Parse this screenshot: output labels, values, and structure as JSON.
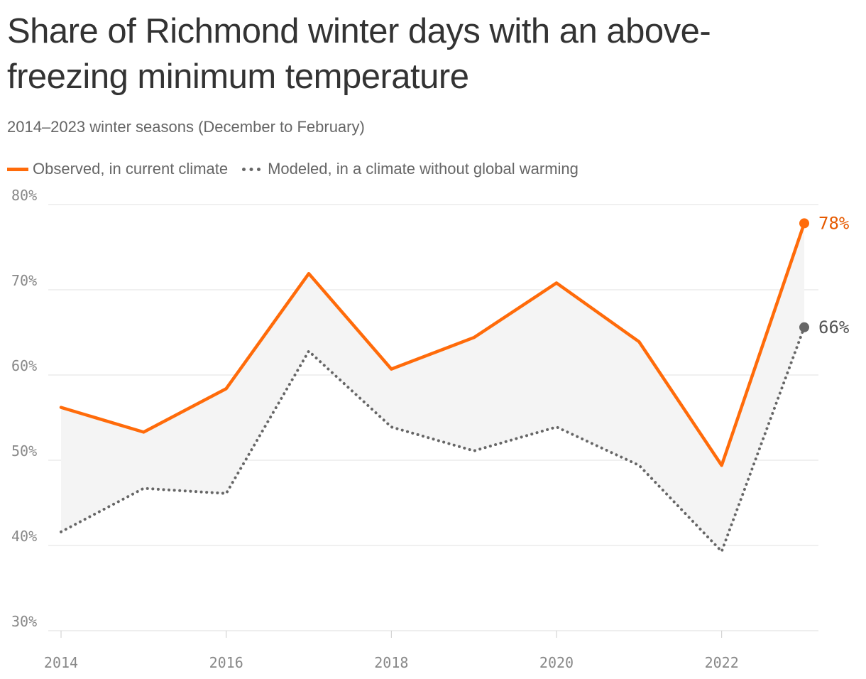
{
  "chart_data": {
    "type": "line",
    "title": "Share of Richmond winter days with an above-freezing minimum temperature",
    "subtitle": "2014–2023 winter seasons (December to February)",
    "x": [
      2014,
      2015,
      2016,
      2017,
      2018,
      2019,
      2020,
      2021,
      2022,
      2023
    ],
    "x_ticks": [
      2014,
      2016,
      2018,
      2020,
      2022
    ],
    "x_tick_labels": [
      "2014",
      "2016",
      "2018",
      "2020",
      "2022"
    ],
    "y_ticks": [
      30,
      40,
      50,
      60,
      70,
      80
    ],
    "y_tick_labels": [
      "30%",
      "40%",
      "50%",
      "60%",
      "70%",
      "80%"
    ],
    "ylim": [
      30,
      80
    ],
    "xlim": [
      2014,
      2023
    ],
    "grid": true,
    "legend_position": "top-left",
    "series": [
      {
        "name": "Observed, in current climate",
        "values": [
          56.2,
          53.3,
          58.4,
          71.9,
          60.7,
          64.4,
          70.8,
          63.9,
          49.4,
          77.8
        ],
        "color": "#ff6b0a",
        "style": "solid",
        "end_label": "78%",
        "end_label_color": "#e65a00"
      },
      {
        "name": "Modeled, in a climate without global warming",
        "values": [
          41.6,
          46.7,
          46.1,
          62.8,
          53.9,
          51.1,
          53.9,
          49.4,
          39.3,
          65.6
        ],
        "color": "#666666",
        "style": "dotted",
        "end_label": "66%",
        "end_label_color": "#555555"
      }
    ],
    "band_fill_color": "#f4f4f4"
  }
}
